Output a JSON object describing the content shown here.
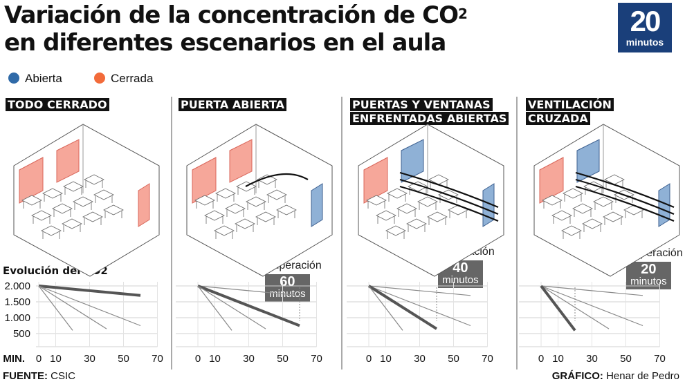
{
  "title": {
    "line1": "Variación de la concentración de CO",
    "sup": "2",
    "line2": "en diferentes escenarios en el aula"
  },
  "logo": {
    "number": "20",
    "word": "minutos"
  },
  "legend": [
    {
      "label": "Abierta",
      "color": "#2f6aa8"
    },
    {
      "label": "Cerrada",
      "color": "#f26b3a"
    }
  ],
  "colors": {
    "open": "#2f6aa8",
    "closed": "#f26b3a",
    "closed_fill": "#f6a79a",
    "open_fill": "#8fb1d6"
  },
  "panels": [
    {
      "label": "TODO CERRADO",
      "recovery": null
    },
    {
      "label": "PUERTA ABIERTA",
      "recovery": {
        "title": "Recuperación",
        "value": "60",
        "unit": "minutos"
      }
    },
    {
      "label": "PUERTAS Y VENTANAS ENFRENTADAS ABIERTAS",
      "recovery": {
        "title": "Recuperación",
        "value": "40",
        "unit": "minutos"
      }
    },
    {
      "label": "VENTILACIÓN CRUZADA",
      "recovery": {
        "title": "Recuperación",
        "value": "20",
        "unit": "minutos"
      }
    }
  ],
  "y_title": "Evolución del CO2",
  "x_title": "MIN.",
  "chart_data": {
    "type": "line",
    "ylabel": "Evolución del CO2",
    "xlabel": "MIN.",
    "xlim": [
      0,
      70
    ],
    "ylim": [
      0,
      2000
    ],
    "x_ticks": [
      0,
      10,
      30,
      50,
      70
    ],
    "y_ticks": [
      500,
      1000,
      1500,
      2000
    ],
    "y_tick_labels": [
      "500",
      "1.000",
      "1.500",
      "2.000"
    ],
    "series": [
      {
        "points": [
          [
            0,
            2000
          ],
          [
            60,
            1700
          ]
        ]
      },
      {
        "points": [
          [
            0,
            2000
          ],
          [
            60,
            750
          ]
        ]
      },
      {
        "points": [
          [
            0,
            2000
          ],
          [
            40,
            650
          ]
        ]
      },
      {
        "points": [
          [
            0,
            2000
          ],
          [
            20,
            600
          ]
        ]
      }
    ],
    "highlight_per_panel": [
      0,
      1,
      2,
      3
    ]
  },
  "footer": {
    "source_key": "FUENTE:",
    "source_value": "CSIC",
    "credit_key": "GRÁFICO:",
    "credit_value": "Henar de Pedro"
  }
}
